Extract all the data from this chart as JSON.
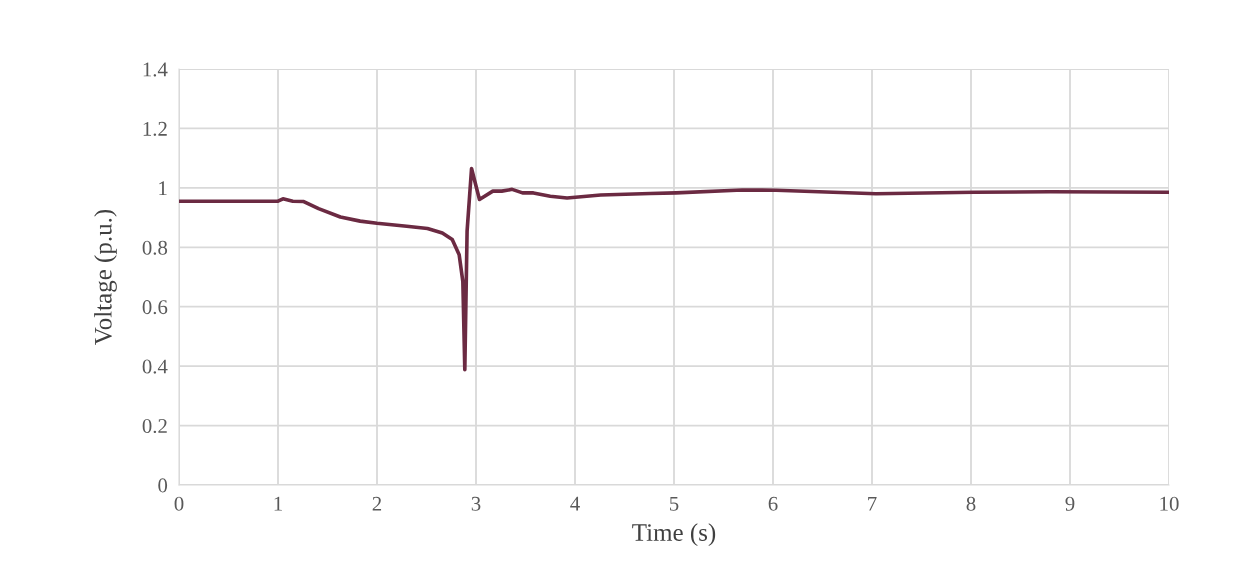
{
  "chart_data": {
    "type": "line",
    "xlabel": "Time (s)",
    "ylabel": "Voltage (p.u.)",
    "xlim": [
      0,
      10
    ],
    "xticks": [
      0,
      1,
      2,
      3,
      4,
      5,
      6,
      7,
      8,
      9,
      10
    ],
    "ylim": [
      0,
      1.4
    ],
    "yticks": [
      0,
      0.2,
      0.4,
      0.6,
      0.8,
      1,
      1.2,
      1.4
    ],
    "grid": true,
    "marker": "none",
    "line_style": "solid",
    "series": [
      {
        "color": "#6b2a42",
        "x": [
          0,
          1.0,
          1.05,
          1.15,
          1.26,
          1.41,
          1.63,
          1.83,
          2.0,
          2.3,
          2.51,
          2.66,
          2.76,
          2.83,
          2.867,
          2.887,
          2.91,
          2.955,
          3.035,
          3.17,
          3.26,
          3.365,
          3.47,
          3.58,
          3.75,
          3.92,
          4.26,
          4.76,
          5.02,
          5.69,
          6.03,
          7.04,
          8.03,
          8.8,
          10.0
        ],
        "values": [
          0.955,
          0.955,
          0.963,
          0.955,
          0.954,
          0.93,
          0.902,
          0.888,
          0.881,
          0.871,
          0.863,
          0.848,
          0.826,
          0.775,
          0.685,
          0.388,
          0.854,
          1.065,
          0.961,
          0.989,
          0.989,
          0.995,
          0.983,
          0.983,
          0.972,
          0.966,
          0.976,
          0.981,
          0.983,
          0.993,
          0.992,
          0.98,
          0.985,
          0.987,
          0.985
        ]
      }
    ]
  }
}
